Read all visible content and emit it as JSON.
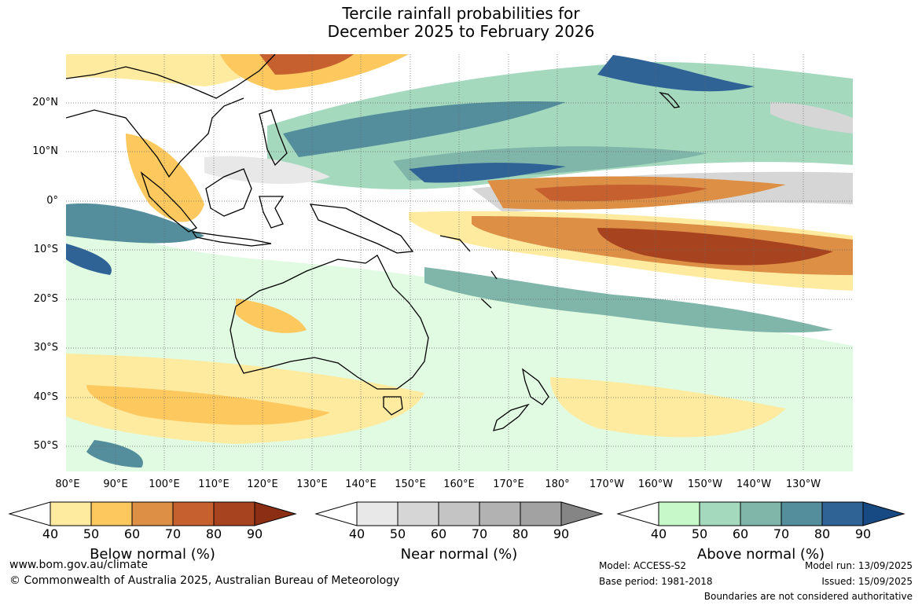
{
  "title_line1": "Tercile rainfall probabilities for",
  "title_line2": "December 2025 to February 2026",
  "lat_labels": [
    "20°N",
    "10°N",
    "0°",
    "10°S",
    "20°S",
    "30°S",
    "40°S",
    "50°S"
  ],
  "lon_labels": [
    "80°E",
    "90°E",
    "100°E",
    "110°E",
    "120°E",
    "130°E",
    "140°E",
    "150°E",
    "160°E",
    "170°E",
    "180°",
    "170°W",
    "160°W",
    "150°W",
    "140°W",
    "130°W"
  ],
  "legends": [
    {
      "name": "Below normal (%)",
      "ticks": [
        "40",
        "50",
        "60",
        "70",
        "80",
        "90"
      ],
      "colors": [
        "#ffffff",
        "#feeba0",
        "#fdc95f",
        "#dd8f45",
        "#c6612f",
        "#a7431f",
        "#8b2e14"
      ]
    },
    {
      "name": "Near normal (%)",
      "ticks": [
        "40",
        "50",
        "60",
        "70",
        "80",
        "90"
      ],
      "colors": [
        "#ffffff",
        "#e8e8e8",
        "#d6d6d6",
        "#c4c4c4",
        "#b2b2b2",
        "#a2a2a2",
        "#858585"
      ]
    },
    {
      "name": "Above normal (%)",
      "ticks": [
        "40",
        "50",
        "60",
        "70",
        "80",
        "90"
      ],
      "colors": [
        "#ffffff",
        "#c7f8c9",
        "#a4d9be",
        "#80b6aa",
        "#548e9c",
        "#2f6396",
        "#174a82"
      ]
    }
  ],
  "footer": {
    "url": "www.bom.gov.au/climate",
    "copyright": "© Commonwealth of Australia 2025, Australian Bureau of Meteorology",
    "model": "Model: ACCESS-S2",
    "base_period": "Base period: 1981-2018",
    "model_run": "Model run: 13/09/2025",
    "issued": "Issued: 15/09/2025",
    "disclaimer": "Boundaries are not considered authoritative"
  }
}
